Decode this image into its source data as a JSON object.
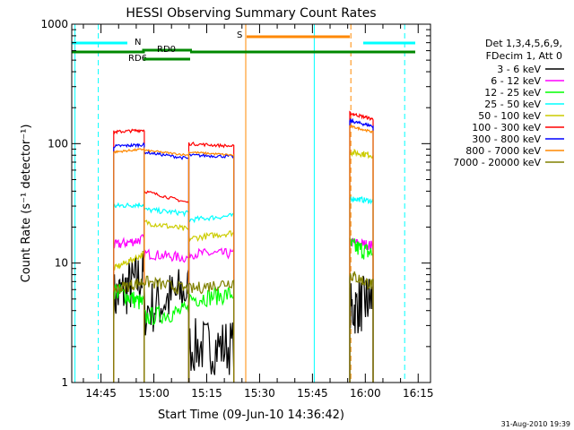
{
  "chart_data": {
    "type": "line",
    "title": "HESSI Observing Summary Count Rates",
    "xlabel": "Start Time (09-Jun-10 14:36:42)",
    "ylabel": "Count Rate (s⁻¹ detector⁻¹)",
    "y_scale": "log",
    "ylim": [
      1,
      1000
    ],
    "y_ticks": [
      {
        "value": 1,
        "label": "1"
      },
      {
        "value": 10,
        "label": "10"
      },
      {
        "value": 100,
        "label": "100"
      },
      {
        "value": 1000,
        "label": "1000"
      }
    ],
    "x_unit": "minutes of day",
    "xlim": [
      876.7,
      978.5
    ],
    "x_ticks": [
      {
        "value": 885,
        "label": "14:45"
      },
      {
        "value": 900,
        "label": "15:00"
      },
      {
        "value": 915,
        "label": "15:15"
      },
      {
        "value": 930,
        "label": "15:30"
      },
      {
        "value": 945,
        "label": "15:45"
      },
      {
        "value": 960,
        "label": "16:00"
      },
      {
        "value": 975,
        "label": "16:15"
      }
    ],
    "grid": false,
    "legend_position": "right",
    "legend_header": [
      "Det 1,3,4,5,6,9,",
      "FDecim 1, Att 0"
    ],
    "timestamp": "31-Aug-2010 19:39",
    "segments": [
      {
        "start": 888.6,
        "end": 897.3
      },
      {
        "start": 897.3,
        "end": 909.9
      },
      {
        "start": 909.9,
        "end": 922.7
      },
      {
        "start": 955.6,
        "end": 962.2
      }
    ],
    "series": [
      {
        "name": "3 - 6 keV",
        "color": "#000000",
        "segments": [
          [
            5,
            8
          ],
          [
            4,
            6
          ],
          [
            2,
            2
          ],
          [
            4,
            5
          ]
        ],
        "noise": 0.55
      },
      {
        "name": "6 - 12 keV",
        "color": "#ff00ff",
        "segments": [
          [
            14,
            16
          ],
          [
            12,
            11
          ],
          [
            12,
            12
          ],
          [
            15,
            14
          ]
        ],
        "noise": 0.1
      },
      {
        "name": "12 - 25 keV",
        "color": "#00ff00",
        "segments": [
          [
            6,
            4.5
          ],
          [
            3.5,
            4
          ],
          [
            5,
            5.5
          ],
          [
            14,
            12
          ]
        ],
        "noise": 0.18
      },
      {
        "name": "25 - 50 keV",
        "color": "#00ffff",
        "segments": [
          [
            30,
            31
          ],
          [
            28,
            26
          ],
          [
            23,
            25
          ],
          [
            35,
            33
          ]
        ],
        "noise": 0.05
      },
      {
        "name": "50 - 100 keV",
        "color": "#cccc00",
        "segments": [
          [
            9,
            12
          ],
          [
            22,
            19
          ],
          [
            16,
            18
          ],
          [
            85,
            80
          ]
        ],
        "noise": 0.06
      },
      {
        "name": "100 - 300 keV",
        "color": "#ff0000",
        "segments": [
          [
            125,
            130
          ],
          [
            40,
            32
          ],
          [
            100,
            95
          ],
          [
            180,
            160
          ]
        ],
        "noise": 0.03
      },
      {
        "name": "300 - 800 keV",
        "color": "#0000ff",
        "segments": [
          [
            95,
            98
          ],
          [
            85,
            75
          ],
          [
            80,
            78
          ],
          [
            155,
            140
          ]
        ],
        "noise": 0.03
      },
      {
        "name": "800 - 7000 keV",
        "color": "#ff8800",
        "segments": [
          [
            85,
            90
          ],
          [
            88,
            80
          ],
          [
            85,
            80
          ],
          [
            140,
            125
          ]
        ],
        "noise": 0.02
      },
      {
        "name": "7000 - 20000 keV",
        "color": "#808000",
        "segments": [
          [
            6,
            7
          ],
          [
            7,
            6
          ],
          [
            6,
            7
          ],
          [
            8,
            6.5
          ]
        ],
        "noise": 0.12
      }
    ],
    "status_bars": [
      {
        "label": "N",
        "color": "#00ffff"
      },
      {
        "label": "RD0",
        "color": "#008800"
      },
      {
        "label": "RD6",
        "color": "#008800"
      },
      {
        "label": "S",
        "color": "#ff8800"
      }
    ]
  }
}
